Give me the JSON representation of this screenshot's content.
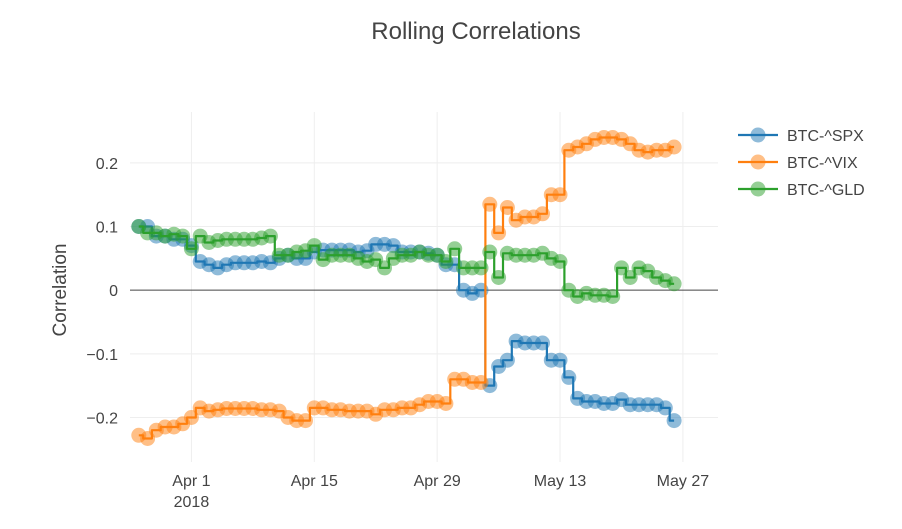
{
  "chart_data": {
    "type": "line",
    "title": "Rolling Correlations",
    "xlabel": "",
    "ylabel": "Correlation",
    "x_ticks": [
      {
        "date": "2018-04-01",
        "label": "Apr 1",
        "sublabel": "2018"
      },
      {
        "date": "2018-04-15",
        "label": "Apr 15",
        "sublabel": ""
      },
      {
        "date": "2018-04-29",
        "label": "Apr 29",
        "sublabel": ""
      },
      {
        "date": "2018-05-13",
        "label": "May 13",
        "sublabel": ""
      },
      {
        "date": "2018-05-27",
        "label": "May 27",
        "sublabel": ""
      }
    ],
    "y_ticks": [
      {
        "value": 0.2,
        "label": "0.2"
      },
      {
        "value": 0.1,
        "label": "0.1"
      },
      {
        "value": 0,
        "label": "0"
      },
      {
        "value": -0.1,
        "label": "−0.1"
      },
      {
        "value": -0.2,
        "label": "−0.2"
      }
    ],
    "xlim": [
      "2018-03-25",
      "2018-05-31"
    ],
    "ylim": [
      -0.27,
      0.28
    ],
    "grid": true,
    "legend_position": "top-right",
    "x": [
      "2018-03-26",
      "2018-03-27",
      "2018-03-28",
      "2018-03-29",
      "2018-03-30",
      "2018-03-31",
      "2018-04-01",
      "2018-04-02",
      "2018-04-03",
      "2018-04-04",
      "2018-04-05",
      "2018-04-06",
      "2018-04-07",
      "2018-04-08",
      "2018-04-09",
      "2018-04-10",
      "2018-04-11",
      "2018-04-12",
      "2018-04-13",
      "2018-04-14",
      "2018-04-15",
      "2018-04-16",
      "2018-04-17",
      "2018-04-18",
      "2018-04-19",
      "2018-04-20",
      "2018-04-21",
      "2018-04-22",
      "2018-04-23",
      "2018-04-24",
      "2018-04-25",
      "2018-04-26",
      "2018-04-27",
      "2018-04-28",
      "2018-04-29",
      "2018-04-30",
      "2018-05-01",
      "2018-05-02",
      "2018-05-03",
      "2018-05-04",
      "2018-05-05",
      "2018-05-06",
      "2018-05-07",
      "2018-05-08",
      "2018-05-09",
      "2018-05-10",
      "2018-05-11",
      "2018-05-12",
      "2018-05-13",
      "2018-05-14",
      "2018-05-15",
      "2018-05-16",
      "2018-05-17",
      "2018-05-18",
      "2018-05-19",
      "2018-05-20",
      "2018-05-21",
      "2018-05-22",
      "2018-05-23",
      "2018-05-24",
      "2018-05-25",
      "2018-05-26"
    ],
    "series": [
      {
        "name": "BTC-^SPX",
        "color": "#1f77b4",
        "values": [
          0.1,
          0.1,
          0.085,
          0.085,
          0.08,
          0.08,
          0.07,
          0.045,
          0.04,
          0.035,
          0.04,
          0.043,
          0.043,
          0.043,
          0.045,
          0.043,
          0.05,
          0.055,
          0.05,
          0.05,
          0.06,
          0.063,
          0.063,
          0.063,
          0.063,
          0.06,
          0.062,
          0.072,
          0.072,
          0.07,
          0.06,
          0.06,
          0.06,
          0.058,
          0.055,
          0.04,
          0.04,
          0.0,
          -0.005,
          0.0,
          -0.15,
          -0.12,
          -0.11,
          -0.08,
          -0.083,
          -0.083,
          -0.083,
          -0.11,
          -0.11,
          -0.137,
          -0.17,
          -0.175,
          -0.175,
          -0.178,
          -0.178,
          -0.172,
          -0.18,
          -0.18,
          -0.18,
          -0.18,
          -0.185,
          -0.205
        ]
      },
      {
        "name": "BTC-^VIX",
        "color": "#ff7f0e",
        "values": [
          -0.228,
          -0.233,
          -0.22,
          -0.215,
          -0.215,
          -0.21,
          -0.2,
          -0.185,
          -0.19,
          -0.188,
          -0.186,
          -0.186,
          -0.186,
          -0.186,
          -0.188,
          -0.188,
          -0.19,
          -0.2,
          -0.205,
          -0.205,
          -0.185,
          -0.185,
          -0.188,
          -0.188,
          -0.19,
          -0.19,
          -0.19,
          -0.195,
          -0.188,
          -0.188,
          -0.185,
          -0.185,
          -0.18,
          -0.175,
          -0.175,
          -0.178,
          -0.14,
          -0.14,
          -0.145,
          -0.145,
          0.135,
          0.09,
          0.13,
          0.11,
          0.115,
          0.115,
          0.12,
          0.15,
          0.15,
          0.22,
          0.225,
          0.23,
          0.237,
          0.24,
          0.24,
          0.237,
          0.23,
          0.22,
          0.217,
          0.22,
          0.22,
          0.225
        ]
      },
      {
        "name": "BTC-^GLD",
        "color": "#2ca02c",
        "values": [
          0.1,
          0.09,
          0.09,
          0.085,
          0.088,
          0.085,
          0.065,
          0.085,
          0.075,
          0.078,
          0.08,
          0.08,
          0.08,
          0.08,
          0.082,
          0.085,
          0.055,
          0.055,
          0.06,
          0.062,
          0.07,
          0.048,
          0.055,
          0.055,
          0.055,
          0.05,
          0.045,
          0.048,
          0.035,
          0.05,
          0.055,
          0.055,
          0.06,
          0.055,
          0.055,
          0.045,
          0.065,
          0.035,
          0.035,
          0.035,
          0.06,
          0.02,
          0.058,
          0.055,
          0.055,
          0.055,
          0.058,
          0.05,
          0.045,
          0.0,
          -0.01,
          -0.005,
          -0.008,
          -0.008,
          -0.01,
          0.035,
          0.02,
          0.035,
          0.03,
          0.02,
          0.015,
          0.01
        ]
      }
    ]
  }
}
